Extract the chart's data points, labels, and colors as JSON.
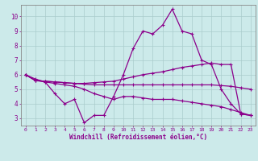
{
  "xlabel": "Windchill (Refroidissement éolien,°C)",
  "background_color": "#cceaea",
  "line_color": "#8b008b",
  "grid_color": "#aacccc",
  "xlim": [
    -0.5,
    23.5
  ],
  "ylim": [
    2.5,
    10.8
  ],
  "xticks": [
    0,
    1,
    2,
    3,
    4,
    5,
    6,
    7,
    8,
    9,
    10,
    11,
    12,
    13,
    14,
    15,
    16,
    17,
    18,
    19,
    20,
    21,
    22,
    23
  ],
  "yticks": [
    3,
    4,
    5,
    6,
    7,
    8,
    9,
    10
  ],
  "line1_y": [
    6.0,
    5.7,
    5.5,
    4.7,
    4.0,
    4.3,
    2.7,
    3.2,
    3.2,
    4.5,
    6.0,
    7.8,
    9.0,
    8.8,
    9.4,
    10.5,
    9.0,
    8.8,
    7.0,
    6.7,
    5.0,
    4.0,
    3.3,
    3.2
  ],
  "line2_y": [
    6.0,
    5.6,
    5.55,
    5.5,
    5.45,
    5.4,
    5.4,
    5.45,
    5.5,
    5.55,
    5.7,
    5.85,
    6.0,
    6.1,
    6.2,
    6.35,
    6.5,
    6.6,
    6.7,
    6.8,
    6.7,
    6.7,
    3.3,
    3.2
  ],
  "line3_y": [
    6.0,
    5.6,
    5.55,
    5.5,
    5.45,
    5.4,
    5.35,
    5.3,
    5.3,
    5.3,
    5.3,
    5.3,
    5.3,
    5.3,
    5.3,
    5.3,
    5.3,
    5.3,
    5.3,
    5.3,
    5.25,
    5.2,
    5.1,
    5.0
  ],
  "line4_y": [
    6.0,
    5.6,
    5.5,
    5.4,
    5.3,
    5.2,
    5.0,
    4.7,
    4.5,
    4.3,
    4.5,
    4.5,
    4.4,
    4.3,
    4.3,
    4.3,
    4.2,
    4.1,
    4.0,
    3.9,
    3.8,
    3.6,
    3.4,
    3.2
  ]
}
